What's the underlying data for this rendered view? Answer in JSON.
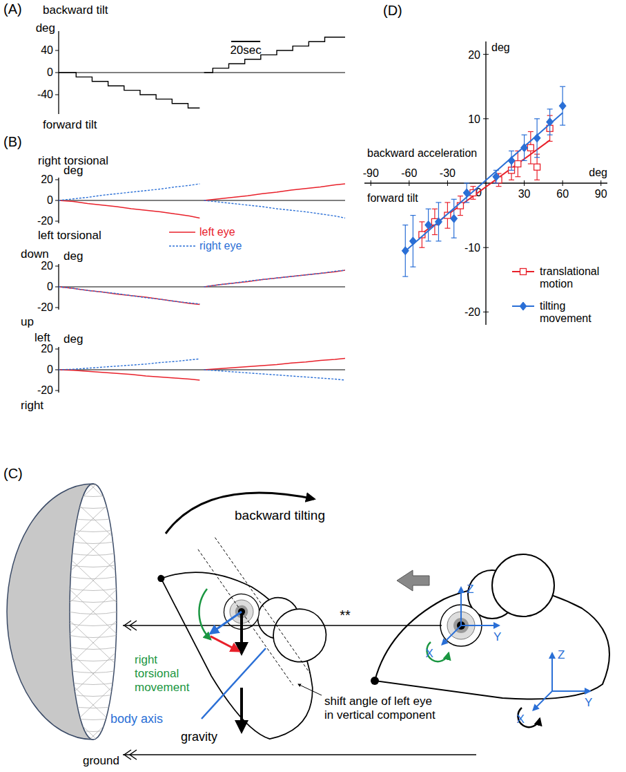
{
  "chart_data": [
    {
      "type": "line",
      "title": "(A)",
      "ylabel": "deg",
      "y_top_label": "backward tilt",
      "y_bottom_label": "forward tilt",
      "xlim": [
        0,
        197
      ],
      "ylim": [
        -75,
        75
      ],
      "yticks": [
        -40,
        0,
        40
      ],
      "tick_labels": "y",
      "scale_bar": {
        "value": 20,
        "label": "20sec"
      },
      "series": [
        {
          "color": "#000000",
          "line_style": "step",
          "x": [
            0,
            12,
            23,
            34,
            45,
            56,
            67,
            78,
            89,
            97,
            98.5,
            100,
            106,
            117,
            128,
            139,
            150,
            161,
            172,
            183,
            197
          ],
          "values": [
            0,
            -8,
            -16,
            -24,
            -32,
            -40,
            -48,
            -56,
            -64,
            -64,
            null,
            0,
            8,
            16,
            24,
            32,
            40,
            48,
            56,
            64,
            64
          ]
        }
      ]
    },
    {
      "type": "line",
      "title": "(B)",
      "ylabel": "deg",
      "y_top_label": "right torsional",
      "y_bottom_label": "left torsional",
      "xlim": [
        0,
        197
      ],
      "ylim": [
        -22,
        22
      ],
      "yticks": [
        -20,
        0,
        20
      ],
      "tick_labels": "y",
      "legend": "below",
      "series": [
        {
          "name": "left eye",
          "color": "#e8202a",
          "line_style": "solid",
          "x": [
            0,
            10,
            20,
            30,
            40,
            50,
            60,
            70,
            80,
            90,
            97,
            98.5,
            100,
            110,
            120,
            130,
            140,
            150,
            160,
            170,
            180,
            190,
            197
          ],
          "values": [
            0,
            -1,
            -3,
            -4.5,
            -6,
            -8,
            -9.5,
            -11,
            -13,
            -15,
            -17,
            null,
            0,
            1.5,
            3,
            4.5,
            6.5,
            8,
            10,
            11.5,
            13,
            15,
            16
          ]
        },
        {
          "name": "right eye",
          "color": "#2a6fd6",
          "line_style": "dashed",
          "x": [
            0,
            10,
            20,
            30,
            40,
            50,
            60,
            70,
            80,
            90,
            97,
            98.5,
            100,
            110,
            120,
            130,
            140,
            150,
            160,
            170,
            180,
            190,
            197
          ],
          "values": [
            0,
            1.5,
            3,
            5,
            6.5,
            8,
            9.5,
            11,
            13,
            14.5,
            16,
            null,
            0,
            -1.5,
            -3,
            -4.5,
            -6,
            -8,
            -9.5,
            -11,
            -13,
            -15,
            -17
          ]
        }
      ]
    },
    {
      "type": "line",
      "ylabel": "deg",
      "y_top_label": "down",
      "y_bottom_label": "up",
      "xlim": [
        0,
        197
      ],
      "ylim": [
        -22,
        22
      ],
      "yticks": [
        -20,
        0,
        20
      ],
      "tick_labels": "y",
      "series": [
        {
          "color": "#e8202a",
          "line_style": "solid",
          "x": [
            0,
            10,
            20,
            30,
            40,
            50,
            60,
            70,
            80,
            90,
            97,
            98.5,
            100,
            110,
            120,
            130,
            140,
            150,
            160,
            170,
            180,
            190,
            197
          ],
          "values": [
            0,
            -1.5,
            -3.5,
            -5,
            -7,
            -8.5,
            -10,
            -12,
            -14,
            -16,
            -17,
            null,
            0,
            2,
            3.5,
            5,
            7,
            8.5,
            10,
            11.5,
            13,
            14.5,
            16
          ]
        },
        {
          "color": "#2a6fd6",
          "line_style": "dashed",
          "x": [
            0,
            10,
            20,
            30,
            40,
            50,
            60,
            70,
            80,
            90,
            97,
            98.5,
            100,
            110,
            120,
            130,
            140,
            150,
            160,
            170,
            180,
            190,
            197
          ],
          "values": [
            0,
            -1.5,
            -3.5,
            -5,
            -6.5,
            -8.5,
            -10.5,
            -12,
            -14,
            -15.5,
            -16.5,
            null,
            0,
            2,
            3.5,
            5.5,
            7,
            8.5,
            10,
            11.5,
            13,
            15,
            16
          ]
        }
      ]
    },
    {
      "type": "line",
      "ylabel": "deg",
      "y_top_label": "left",
      "y_bottom_label": "right",
      "xlim": [
        0,
        197
      ],
      "ylim": [
        -22,
        22
      ],
      "yticks": [
        -20,
        0,
        20
      ],
      "tick_labels": "y",
      "series": [
        {
          "color": "#e8202a",
          "line_style": "solid",
          "x": [
            0,
            10,
            20,
            30,
            40,
            50,
            60,
            70,
            80,
            90,
            97,
            98.5,
            100,
            110,
            120,
            130,
            140,
            150,
            160,
            170,
            180,
            190,
            197
          ],
          "values": [
            0,
            -0.5,
            -1.5,
            -2.5,
            -3.5,
            -4.5,
            -6,
            -7,
            -8,
            -9,
            -10,
            null,
            0,
            1,
            2,
            3,
            4,
            5,
            6.5,
            7.5,
            9,
            10,
            11
          ]
        },
        {
          "color": "#2a6fd6",
          "line_style": "dashed",
          "x": [
            0,
            10,
            20,
            30,
            40,
            50,
            60,
            70,
            80,
            90,
            97,
            98.5,
            100,
            110,
            120,
            130,
            140,
            150,
            160,
            170,
            180,
            190,
            197
          ],
          "values": [
            0,
            0.5,
            1.5,
            2.5,
            3.5,
            4.5,
            5.5,
            7,
            8,
            9.5,
            10.5,
            null,
            0,
            -1,
            -2,
            -3,
            -4,
            -5,
            -6,
            -7,
            -8,
            -9,
            -10
          ]
        }
      ]
    },
    {
      "type": "scatter",
      "title": "(D)",
      "xlabel": "deg",
      "ylabel": "deg",
      "x_label_negative": "backward acceleration",
      "y_label_negative": "forward tilt",
      "xlim": [
        -95,
        95
      ],
      "ylim": [
        -22,
        22
      ],
      "xticks": [
        -90,
        -60,
        -30,
        30,
        60,
        90
      ],
      "yticks": [
        -20,
        -10,
        0,
        10,
        20
      ],
      "legend": "lower right",
      "series": [
        {
          "name": "translational motion",
          "color": "#e8202a",
          "marker": "square-open",
          "line_style": "solid",
          "x": [
            -50,
            -40,
            -30,
            -20,
            -10,
            10,
            20,
            25,
            35,
            40,
            50
          ],
          "values": [
            -8,
            -6,
            -5,
            -3.5,
            -1.5,
            0.5,
            2,
            3,
            5.5,
            2.5,
            8.5
          ],
          "errors": [
            2,
            2,
            2,
            1.5,
            1,
            1,
            1.5,
            2,
            2.5,
            2,
            2
          ]
        },
        {
          "name": "tilting movement",
          "color": "#2a6fd6",
          "marker": "diamond",
          "line_style": "solid",
          "x": [
            -63,
            -57,
            -45,
            -37,
            -25,
            -15,
            8,
            20,
            30,
            40,
            50,
            60
          ],
          "values": [
            -10.5,
            -9,
            -6.5,
            -6,
            -5.5,
            -1.5,
            1,
            3.5,
            5.5,
            7,
            9.5,
            12
          ],
          "errors": [
            4,
            4,
            2.5,
            3,
            3,
            1.5,
            1,
            1.5,
            2,
            3,
            2,
            3
          ]
        }
      ]
    }
  ],
  "diagram": {
    "label": "(C)",
    "backward_tilting": "backward tilting",
    "right_torsional_movement": "right torsional movement",
    "body_axis": "body axis",
    "gravity": "gravity",
    "shift_angle": "shift angle of left eye in vertical component",
    "ground": "ground",
    "significance": "**",
    "axes": {
      "z": "Z",
      "y": "Y",
      "x": "X"
    }
  }
}
